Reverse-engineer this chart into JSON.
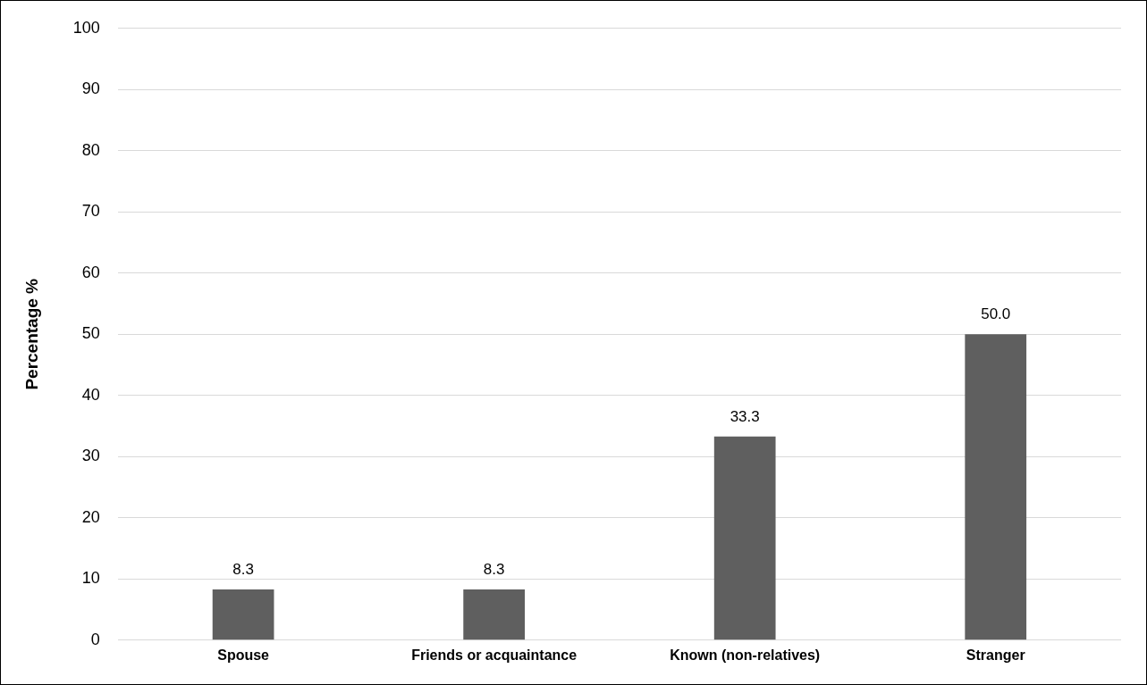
{
  "chart_data": {
    "type": "bar",
    "ylabel": "Percentage %",
    "categories": [
      "Spouse",
      "Friends or acquaintance",
      "Known (non-relatives)",
      "Stranger"
    ],
    "values": [
      8.3,
      8.3,
      33.3,
      50.0
    ],
    "value_labels": [
      "8.3",
      "8.3",
      "33.3",
      "50.0"
    ],
    "color": "#5f5f5f",
    "ylim": [
      0,
      100
    ],
    "yticks": [
      0,
      10,
      20,
      30,
      40,
      50,
      60,
      70,
      80,
      90,
      100
    ],
    "grid": "y",
    "legend": false
  }
}
